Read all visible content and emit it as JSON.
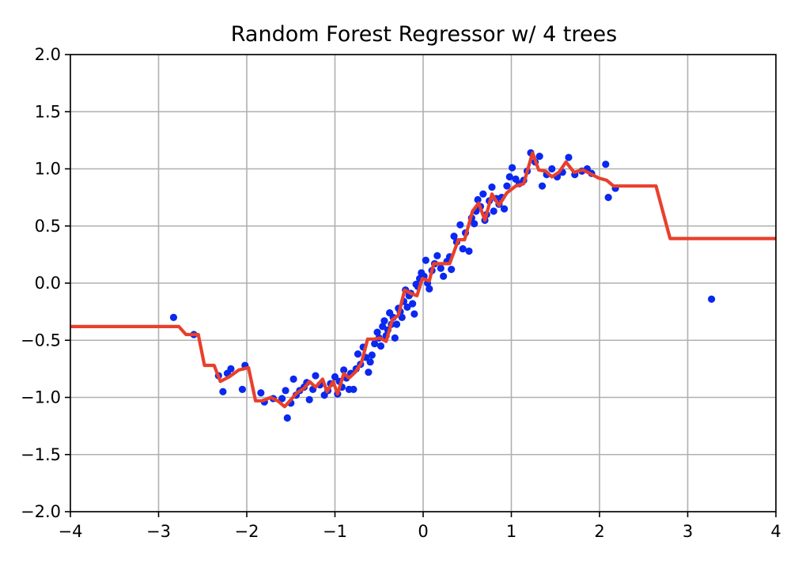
{
  "chart_data": {
    "type": "scatter",
    "title": "Random Forest Regressor w/ 4 trees",
    "xlabel": "",
    "ylabel": "",
    "xlim": [
      -4,
      4
    ],
    "ylim": [
      -2.0,
      2.0
    ],
    "xticks": [
      -4,
      -3,
      -2,
      -1,
      0,
      1,
      2,
      3,
      4
    ],
    "xtick_labels": [
      "−4",
      "−3",
      "−2",
      "−1",
      "0",
      "1",
      "2",
      "3",
      "4"
    ],
    "yticks": [
      -2.0,
      -1.5,
      -1.0,
      -0.5,
      0.0,
      0.5,
      1.0,
      1.5,
      2.0
    ],
    "ytick_labels": [
      "−2.0",
      "−1.5",
      "−1.0",
      "−0.5",
      "0.0",
      "0.5",
      "1.0",
      "1.5",
      "2.0"
    ],
    "grid": true,
    "colors": {
      "points": "#0a28f0",
      "line": "#e8402c",
      "grid": "#b0b0b0"
    },
    "series": [
      {
        "kind": "scatter",
        "points": [
          [
            -2.83,
            -0.3
          ],
          [
            -2.6,
            -0.45
          ],
          [
            -2.32,
            -0.81
          ],
          [
            -2.27,
            -0.95
          ],
          [
            -2.22,
            -0.79
          ],
          [
            -2.18,
            -0.75
          ],
          [
            -2.05,
            -0.93
          ],
          [
            -2.02,
            -0.72
          ],
          [
            -1.84,
            -0.96
          ],
          [
            -1.8,
            -1.04
          ],
          [
            -1.7,
            -1.01
          ],
          [
            -1.6,
            -1.01
          ],
          [
            -1.56,
            -0.94
          ],
          [
            -1.54,
            -1.18
          ],
          [
            -1.5,
            -1.05
          ],
          [
            -1.47,
            -0.84
          ],
          [
            -1.44,
            -0.98
          ],
          [
            -1.4,
            -0.94
          ],
          [
            -1.35,
            -0.91
          ],
          [
            -1.32,
            -0.87
          ],
          [
            -1.29,
            -1.02
          ],
          [
            -1.25,
            -0.93
          ],
          [
            -1.22,
            -0.81
          ],
          [
            -1.17,
            -0.89
          ],
          [
            -1.12,
            -0.98
          ],
          [
            -1.08,
            -0.94
          ],
          [
            -1.05,
            -0.88
          ],
          [
            -1.0,
            -0.82
          ],
          [
            -0.97,
            -0.97
          ],
          [
            -0.95,
            -0.86
          ],
          [
            -0.92,
            -0.91
          ],
          [
            -0.9,
            -0.76
          ],
          [
            -0.87,
            -0.83
          ],
          [
            -0.84,
            -0.93
          ],
          [
            -0.82,
            -0.79
          ],
          [
            -0.79,
            -0.93
          ],
          [
            -0.76,
            -0.75
          ],
          [
            -0.74,
            -0.62
          ],
          [
            -0.71,
            -0.71
          ],
          [
            -0.68,
            -0.56
          ],
          [
            -0.65,
            -0.65
          ],
          [
            -0.62,
            -0.78
          ],
          [
            -0.6,
            -0.69
          ],
          [
            -0.58,
            -0.63
          ],
          [
            -0.55,
            -0.53
          ],
          [
            -0.52,
            -0.43
          ],
          [
            -0.5,
            -0.48
          ],
          [
            -0.48,
            -0.55
          ],
          [
            -0.46,
            -0.38
          ],
          [
            -0.44,
            -0.33
          ],
          [
            -0.42,
            -0.46
          ],
          [
            -0.4,
            -0.41
          ],
          [
            -0.38,
            -0.26
          ],
          [
            -0.36,
            -0.36
          ],
          [
            -0.34,
            -0.3
          ],
          [
            -0.32,
            -0.48
          ],
          [
            -0.3,
            -0.36
          ],
          [
            -0.28,
            -0.22
          ],
          [
            -0.26,
            -0.25
          ],
          [
            -0.24,
            -0.3
          ],
          [
            -0.22,
            -0.16
          ],
          [
            -0.2,
            -0.06
          ],
          [
            -0.18,
            -0.21
          ],
          [
            -0.16,
            -0.11
          ],
          [
            -0.14,
            -0.09
          ],
          [
            -0.12,
            -0.18
          ],
          [
            -0.1,
            -0.27
          ],
          [
            -0.08,
            -0.01
          ],
          [
            -0.06,
            -0.03
          ],
          [
            -0.04,
            0.04
          ],
          [
            -0.02,
            0.09
          ],
          [
            0.01,
            0.06
          ],
          [
            0.03,
            0.2
          ],
          [
            0.05,
            0.0
          ],
          [
            0.07,
            -0.05
          ],
          [
            0.1,
            0.11
          ],
          [
            0.13,
            0.17
          ],
          [
            0.16,
            0.24
          ],
          [
            0.2,
            0.13
          ],
          [
            0.23,
            0.06
          ],
          [
            0.27,
            0.19
          ],
          [
            0.3,
            0.23
          ],
          [
            0.32,
            0.12
          ],
          [
            0.35,
            0.41
          ],
          [
            0.38,
            0.36
          ],
          [
            0.42,
            0.51
          ],
          [
            0.45,
            0.3
          ],
          [
            0.48,
            0.44
          ],
          [
            0.52,
            0.28
          ],
          [
            0.55,
            0.57
          ],
          [
            0.58,
            0.52
          ],
          [
            0.6,
            0.63
          ],
          [
            0.62,
            0.73
          ],
          [
            0.65,
            0.67
          ],
          [
            0.68,
            0.78
          ],
          [
            0.7,
            0.55
          ],
          [
            0.72,
            0.6
          ],
          [
            0.75,
            0.72
          ],
          [
            0.78,
            0.84
          ],
          [
            0.8,
            0.63
          ],
          [
            0.83,
            0.74
          ],
          [
            0.86,
            0.69
          ],
          [
            0.89,
            0.75
          ],
          [
            0.92,
            0.65
          ],
          [
            0.95,
            0.85
          ],
          [
            0.98,
            0.93
          ],
          [
            1.01,
            1.01
          ],
          [
            1.05,
            0.91
          ],
          [
            1.09,
            0.87
          ],
          [
            1.14,
            0.9
          ],
          [
            1.18,
            0.98
          ],
          [
            1.22,
            1.14
          ],
          [
            1.27,
            1.06
          ],
          [
            1.32,
            1.11
          ],
          [
            1.35,
            0.85
          ],
          [
            1.4,
            0.95
          ],
          [
            1.46,
            1.0
          ],
          [
            1.52,
            0.93
          ],
          [
            1.58,
            0.97
          ],
          [
            1.65,
            1.1
          ],
          [
            1.72,
            0.95
          ],
          [
            1.8,
            0.98
          ],
          [
            1.86,
            1.0
          ],
          [
            1.91,
            0.96
          ],
          [
            2.07,
            1.04
          ],
          [
            2.1,
            0.75
          ],
          [
            2.18,
            0.83
          ],
          [
            3.27,
            -0.14
          ]
        ]
      },
      {
        "kind": "line",
        "points": [
          [
            -4.0,
            -0.38
          ],
          [
            -2.77,
            -0.38
          ],
          [
            -2.69,
            -0.45
          ],
          [
            -2.55,
            -0.45
          ],
          [
            -2.48,
            -0.72
          ],
          [
            -2.37,
            -0.72
          ],
          [
            -2.3,
            -0.86
          ],
          [
            -2.2,
            -0.82
          ],
          [
            -2.09,
            -0.76
          ],
          [
            -1.98,
            -0.74
          ],
          [
            -1.9,
            -1.03
          ],
          [
            -1.82,
            -1.03
          ],
          [
            -1.73,
            -1.0
          ],
          [
            -1.65,
            -1.03
          ],
          [
            -1.57,
            -1.08
          ],
          [
            -1.5,
            -1.02
          ],
          [
            -1.43,
            -0.96
          ],
          [
            -1.35,
            -0.92
          ],
          [
            -1.29,
            -0.86
          ],
          [
            -1.22,
            -0.91
          ],
          [
            -1.14,
            -0.84
          ],
          [
            -1.09,
            -0.95
          ],
          [
            -1.02,
            -0.86
          ],
          [
            -0.97,
            -0.97
          ],
          [
            -0.9,
            -0.79
          ],
          [
            -0.84,
            -0.83
          ],
          [
            -0.77,
            -0.78
          ],
          [
            -0.7,
            -0.7
          ],
          [
            -0.63,
            -0.49
          ],
          [
            -0.56,
            -0.49
          ],
          [
            -0.49,
            -0.48
          ],
          [
            -0.42,
            -0.51
          ],
          [
            -0.35,
            -0.32
          ],
          [
            -0.28,
            -0.28
          ],
          [
            -0.21,
            -0.06
          ],
          [
            -0.14,
            -0.09
          ],
          [
            -0.07,
            -0.11
          ],
          [
            -0.01,
            0.04
          ],
          [
            0.07,
            0.02
          ],
          [
            0.12,
            0.17
          ],
          [
            0.22,
            0.17
          ],
          [
            0.3,
            0.17
          ],
          [
            0.4,
            0.38
          ],
          [
            0.47,
            0.38
          ],
          [
            0.56,
            0.63
          ],
          [
            0.63,
            0.7
          ],
          [
            0.7,
            0.55
          ],
          [
            0.78,
            0.78
          ],
          [
            0.86,
            0.68
          ],
          [
            0.95,
            0.79
          ],
          [
            1.05,
            0.85
          ],
          [
            1.14,
            0.87
          ],
          [
            1.24,
            1.14
          ],
          [
            1.31,
            0.99
          ],
          [
            1.39,
            0.98
          ],
          [
            1.46,
            0.93
          ],
          [
            1.54,
            0.97
          ],
          [
            1.62,
            1.06
          ],
          [
            1.71,
            0.97
          ],
          [
            1.81,
            0.99
          ],
          [
            1.89,
            0.96
          ],
          [
            1.99,
            0.92
          ],
          [
            2.08,
            0.9
          ],
          [
            2.16,
            0.85
          ],
          [
            2.64,
            0.85
          ],
          [
            2.8,
            0.39
          ],
          [
            4.0,
            0.39
          ]
        ]
      }
    ]
  }
}
